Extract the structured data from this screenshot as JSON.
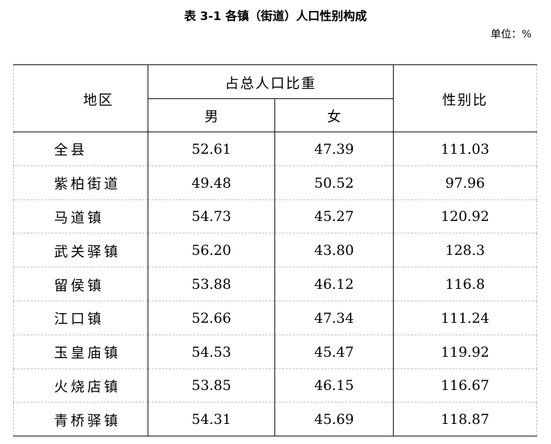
{
  "title": "表 3-1  各镇（街道）人口性别构成",
  "unit": "单位：%",
  "headers": {
    "region": "地区",
    "share": "占总人口比重",
    "male": "男",
    "female": "女",
    "ratio": "性别比"
  },
  "rows": [
    {
      "region": "全县",
      "male": "52.61",
      "female": "47.39",
      "ratio": "111.03"
    },
    {
      "region": "紫柏街道",
      "male": "49.48",
      "female": "50.52",
      "ratio": "97.96"
    },
    {
      "region": "马道镇",
      "male": "54.73",
      "female": "45.27",
      "ratio": "120.92"
    },
    {
      "region": "武关驿镇",
      "male": "56.20",
      "female": "43.80",
      "ratio": "128.3"
    },
    {
      "region": "留侯镇",
      "male": "53.88",
      "female": "46.12",
      "ratio": "116.8"
    },
    {
      "region": "江口镇",
      "male": "52.66",
      "female": "47.34",
      "ratio": "111.24"
    },
    {
      "region": "玉皇庙镇",
      "male": "54.53",
      "female": "45.47",
      "ratio": "119.92"
    },
    {
      "region": "火烧店镇",
      "male": "53.85",
      "female": "46.15",
      "ratio": "116.67"
    },
    {
      "region": "青桥驿镇",
      "male": "54.31",
      "female": "45.69",
      "ratio": "118.87"
    }
  ]
}
